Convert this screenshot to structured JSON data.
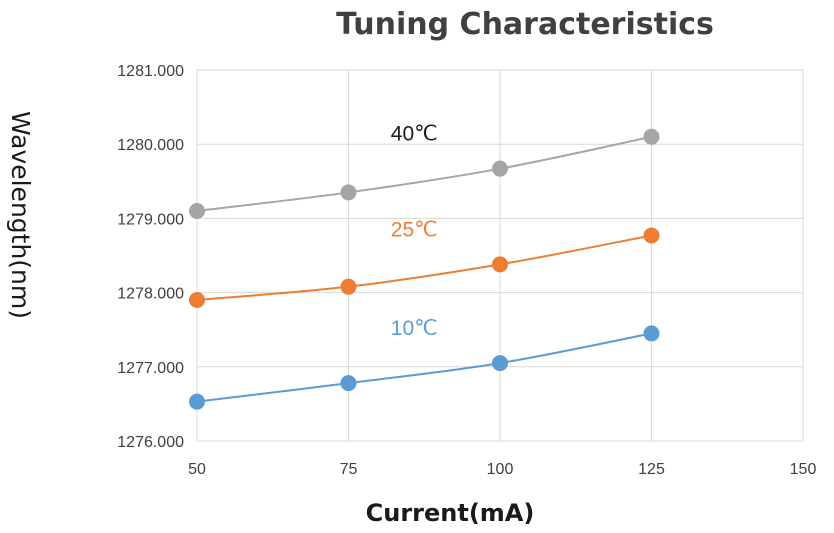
{
  "chart_data": {
    "type": "line",
    "title": "Tuning Characteristics",
    "xlabel": "Current(mA)",
    "ylabel": "Wavelength(nm)",
    "x": [
      50,
      75,
      100,
      125
    ],
    "xticks": [
      "50",
      "75",
      "100",
      "125",
      "150"
    ],
    "yticks": [
      "1276.000",
      "1277.000",
      "1278.000",
      "1279.000",
      "1280.000",
      "1281.000"
    ],
    "xlim": [
      50,
      150
    ],
    "ylim": [
      1276,
      1281
    ],
    "grid": true,
    "series": [
      {
        "name": "40℃",
        "color": "#a5a5a5",
        "values": [
          1279.1,
          1279.35,
          1279.67,
          1280.1
        ]
      },
      {
        "name": "25℃",
        "color": "#ed7d31",
        "values": [
          1277.9,
          1278.08,
          1278.38,
          1278.77
        ]
      },
      {
        "name": "10℃",
        "color": "#5b9bd5",
        "values": [
          1276.53,
          1276.78,
          1277.05,
          1277.45
        ]
      }
    ]
  }
}
